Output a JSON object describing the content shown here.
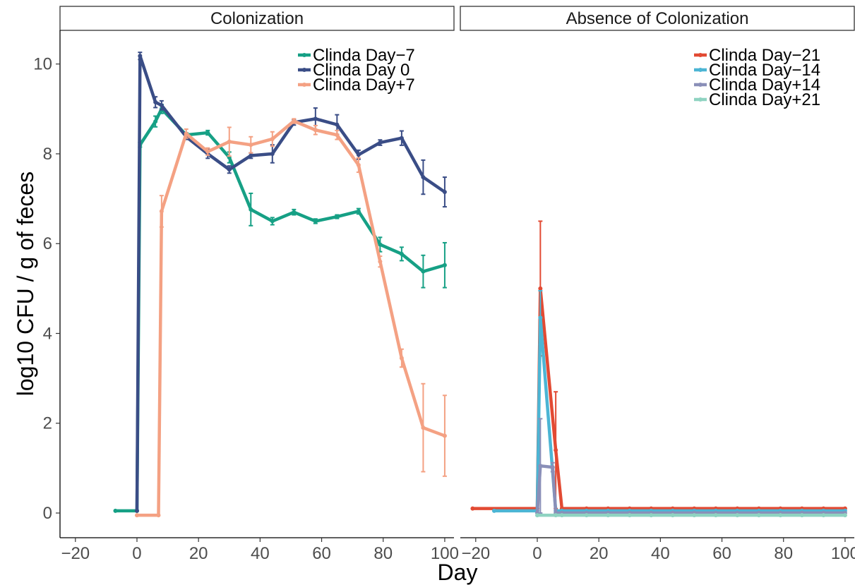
{
  "chart_data": {
    "type": "line",
    "xlabel": "Day",
    "ylabel": "log10 CFU / g of feces",
    "xlim": [
      -25,
      103
    ],
    "ylim": [
      -0.55,
      10.75
    ],
    "x_ticks": [
      -20,
      0,
      20,
      40,
      60,
      80,
      100
    ],
    "y_ticks": [
      0,
      2,
      4,
      6,
      8,
      10
    ],
    "grid": false,
    "panels": [
      {
        "title": "Colonization",
        "legend_position": "top-right",
        "series": [
          {
            "name": "Clinda Day−7",
            "color": "#16a085",
            "points": [
              {
                "x": -7,
                "y": 0.05,
                "err": 0
              },
              {
                "x": 0,
                "y": 0.05,
                "err": 0
              },
              {
                "x": 1,
                "y": 8.2,
                "err": 0.05
              },
              {
                "x": 6,
                "y": 8.72,
                "err": 0.12
              },
              {
                "x": 8,
                "y": 9.0,
                "err": 0.1
              },
              {
                "x": 16,
                "y": 8.42,
                "err": 0.05
              },
              {
                "x": 23,
                "y": 8.47,
                "err": 0.05
              },
              {
                "x": 30,
                "y": 7.92,
                "err": 0.12
              },
              {
                "x": 37,
                "y": 6.76,
                "err": 0.36
              },
              {
                "x": 44,
                "y": 6.5,
                "err": 0.08
              },
              {
                "x": 51,
                "y": 6.7,
                "err": 0.06
              },
              {
                "x": 58,
                "y": 6.5,
                "err": 0.05
              },
              {
                "x": 65,
                "y": 6.6,
                "err": 0.04
              },
              {
                "x": 72,
                "y": 6.72,
                "err": 0.06
              },
              {
                "x": 79,
                "y": 5.98,
                "err": 0.16
              },
              {
                "x": 86,
                "y": 5.77,
                "err": 0.15
              },
              {
                "x": 93,
                "y": 5.38,
                "err": 0.36
              },
              {
                "x": 100,
                "y": 5.52,
                "err": 0.5
              }
            ]
          },
          {
            "name": "Clinda Day 0",
            "color": "#3a4d86",
            "points": [
              {
                "x": 0,
                "y": 0.05,
                "err": 0
              },
              {
                "x": 1,
                "y": 10.18,
                "err": 0.08
              },
              {
                "x": 6,
                "y": 9.15,
                "err": 0.12
              },
              {
                "x": 8,
                "y": 9.08,
                "err": 0.1
              },
              {
                "x": 16,
                "y": 8.38,
                "err": 0.06
              },
              {
                "x": 23,
                "y": 8.0,
                "err": 0.1
              },
              {
                "x": 30,
                "y": 7.65,
                "err": 0.08
              },
              {
                "x": 37,
                "y": 7.96,
                "err": 0.06
              },
              {
                "x": 44,
                "y": 8.0,
                "err": 0.2
              },
              {
                "x": 51,
                "y": 8.7,
                "err": 0.06
              },
              {
                "x": 58,
                "y": 8.78,
                "err": 0.24
              },
              {
                "x": 65,
                "y": 8.65,
                "err": 0.22
              },
              {
                "x": 72,
                "y": 7.98,
                "err": 0.1
              },
              {
                "x": 79,
                "y": 8.25,
                "err": 0.06
              },
              {
                "x": 86,
                "y": 8.35,
                "err": 0.16
              },
              {
                "x": 93,
                "y": 7.48,
                "err": 0.38
              },
              {
                "x": 100,
                "y": 7.15,
                "err": 0.33
              }
            ]
          },
          {
            "name": "Clinda Day+7",
            "color": "#f4a183",
            "points": [
              {
                "x": 0,
                "y": -0.05,
                "err": 0
              },
              {
                "x": 7,
                "y": -0.05,
                "err": 0
              },
              {
                "x": 8,
                "y": 6.72,
                "err": 0.35
              },
              {
                "x": 16,
                "y": 8.45,
                "err": 0.1
              },
              {
                "x": 23,
                "y": 8.05,
                "err": 0.08
              },
              {
                "x": 30,
                "y": 8.27,
                "err": 0.32
              },
              {
                "x": 37,
                "y": 8.2,
                "err": 0.18
              },
              {
                "x": 44,
                "y": 8.33,
                "err": 0.16
              },
              {
                "x": 51,
                "y": 8.73,
                "err": 0.05
              },
              {
                "x": 58,
                "y": 8.53,
                "err": 0.1
              },
              {
                "x": 65,
                "y": 8.42,
                "err": 0.1
              },
              {
                "x": 72,
                "y": 7.75,
                "err": 0.16
              },
              {
                "x": 79,
                "y": 5.6,
                "err": 0.12
              },
              {
                "x": 86,
                "y": 3.45,
                "err": 0.2
              },
              {
                "x": 93,
                "y": 1.9,
                "err": 0.98
              },
              {
                "x": 100,
                "y": 1.72,
                "err": 0.9
              }
            ]
          }
        ]
      },
      {
        "title": "Absence of Colonization",
        "legend_position": "top-right",
        "series": [
          {
            "name": "Clinda Day−21",
            "color": "#e24a33",
            "points": [
              {
                "x": -21,
                "y": 0.1,
                "err": 0
              },
              {
                "x": 0,
                "y": 0.1,
                "err": 0
              },
              {
                "x": 1,
                "y": 5.0,
                "err": 1.5
              },
              {
                "x": 6,
                "y": 1.4,
                "err": 1.3
              },
              {
                "x": 8,
                "y": 0.1,
                "err": 0
              },
              {
                "x": 16,
                "y": 0.1,
                "err": 0
              },
              {
                "x": 23,
                "y": 0.1,
                "err": 0
              },
              {
                "x": 30,
                "y": 0.1,
                "err": 0
              },
              {
                "x": 37,
                "y": 0.1,
                "err": 0
              },
              {
                "x": 44,
                "y": 0.1,
                "err": 0
              },
              {
                "x": 51,
                "y": 0.1,
                "err": 0
              },
              {
                "x": 58,
                "y": 0.1,
                "err": 0
              },
              {
                "x": 65,
                "y": 0.1,
                "err": 0
              },
              {
                "x": 72,
                "y": 0.1,
                "err": 0
              },
              {
                "x": 79,
                "y": 0.1,
                "err": 0
              },
              {
                "x": 86,
                "y": 0.1,
                "err": 0
              },
              {
                "x": 93,
                "y": 0.1,
                "err": 0
              },
              {
                "x": 100,
                "y": 0.1,
                "err": 0
              }
            ]
          },
          {
            "name": "Clinda Day−14",
            "color": "#4cb5d4",
            "points": [
              {
                "x": -14,
                "y": 0.05,
                "err": 0
              },
              {
                "x": 0,
                "y": 0.05,
                "err": 0
              },
              {
                "x": 1,
                "y": 4.35,
                "err": 0.6
              },
              {
                "x": 6,
                "y": 0.05,
                "err": 0
              },
              {
                "x": 8,
                "y": 0.05,
                "err": 0
              },
              {
                "x": 16,
                "y": 0.05,
                "err": 0
              },
              {
                "x": 23,
                "y": 0.05,
                "err": 0
              },
              {
                "x": 30,
                "y": 0.05,
                "err": 0
              },
              {
                "x": 37,
                "y": 0.05,
                "err": 0
              },
              {
                "x": 44,
                "y": 0.05,
                "err": 0
              },
              {
                "x": 51,
                "y": 0.05,
                "err": 0
              },
              {
                "x": 58,
                "y": 0.05,
                "err": 0
              },
              {
                "x": 65,
                "y": 0.05,
                "err": 0
              },
              {
                "x": 72,
                "y": 0.05,
                "err": 0
              },
              {
                "x": 79,
                "y": 0.05,
                "err": 0
              },
              {
                "x": 86,
                "y": 0.05,
                "err": 0
              },
              {
                "x": 93,
                "y": 0.05,
                "err": 0
              },
              {
                "x": 100,
                "y": 0.05,
                "err": 0
              }
            ]
          },
          {
            "name": "Clinda Day+14",
            "color": "#8a8fb8",
            "points": [
              {
                "x": 0,
                "y": 0.0,
                "err": 0
              },
              {
                "x": 1,
                "y": 1.05,
                "err": 1.05
              },
              {
                "x": 5,
                "y": 1.02,
                "err": 0.1
              },
              {
                "x": 6,
                "y": 0.0,
                "err": 0
              },
              {
                "x": 8,
                "y": 0.0,
                "err": 0
              },
              {
                "x": 16,
                "y": 0.0,
                "err": 0
              },
              {
                "x": 23,
                "y": 0.0,
                "err": 0
              },
              {
                "x": 30,
                "y": 0.0,
                "err": 0
              },
              {
                "x": 37,
                "y": 0.0,
                "err": 0
              },
              {
                "x": 44,
                "y": 0.0,
                "err": 0
              },
              {
                "x": 51,
                "y": 0.0,
                "err": 0
              },
              {
                "x": 58,
                "y": 0.0,
                "err": 0
              },
              {
                "x": 65,
                "y": 0.0,
                "err": 0
              },
              {
                "x": 72,
                "y": 0.0,
                "err": 0
              },
              {
                "x": 79,
                "y": 0.0,
                "err": 0
              },
              {
                "x": 86,
                "y": 0.0,
                "err": 0
              },
              {
                "x": 93,
                "y": 0.0,
                "err": 0
              },
              {
                "x": 100,
                "y": 0.0,
                "err": 0
              }
            ]
          },
          {
            "name": "Clinda Day+21",
            "color": "#8fd3c1",
            "points": [
              {
                "x": 0,
                "y": -0.05,
                "err": 0
              },
              {
                "x": 6,
                "y": -0.05,
                "err": 0
              },
              {
                "x": 8,
                "y": -0.05,
                "err": 0
              },
              {
                "x": 16,
                "y": -0.05,
                "err": 0
              },
              {
                "x": 23,
                "y": -0.05,
                "err": 0
              },
              {
                "x": 30,
                "y": -0.05,
                "err": 0
              },
              {
                "x": 37,
                "y": -0.05,
                "err": 0
              },
              {
                "x": 44,
                "y": -0.05,
                "err": 0
              },
              {
                "x": 51,
                "y": -0.05,
                "err": 0
              },
              {
                "x": 58,
                "y": -0.05,
                "err": 0
              },
              {
                "x": 65,
                "y": -0.05,
                "err": 0
              },
              {
                "x": 72,
                "y": -0.05,
                "err": 0
              },
              {
                "x": 79,
                "y": -0.05,
                "err": 0
              },
              {
                "x": 86,
                "y": -0.05,
                "err": 0
              },
              {
                "x": 93,
                "y": -0.05,
                "err": 0
              },
              {
                "x": 100,
                "y": -0.05,
                "err": 0
              }
            ]
          }
        ]
      }
    ]
  }
}
